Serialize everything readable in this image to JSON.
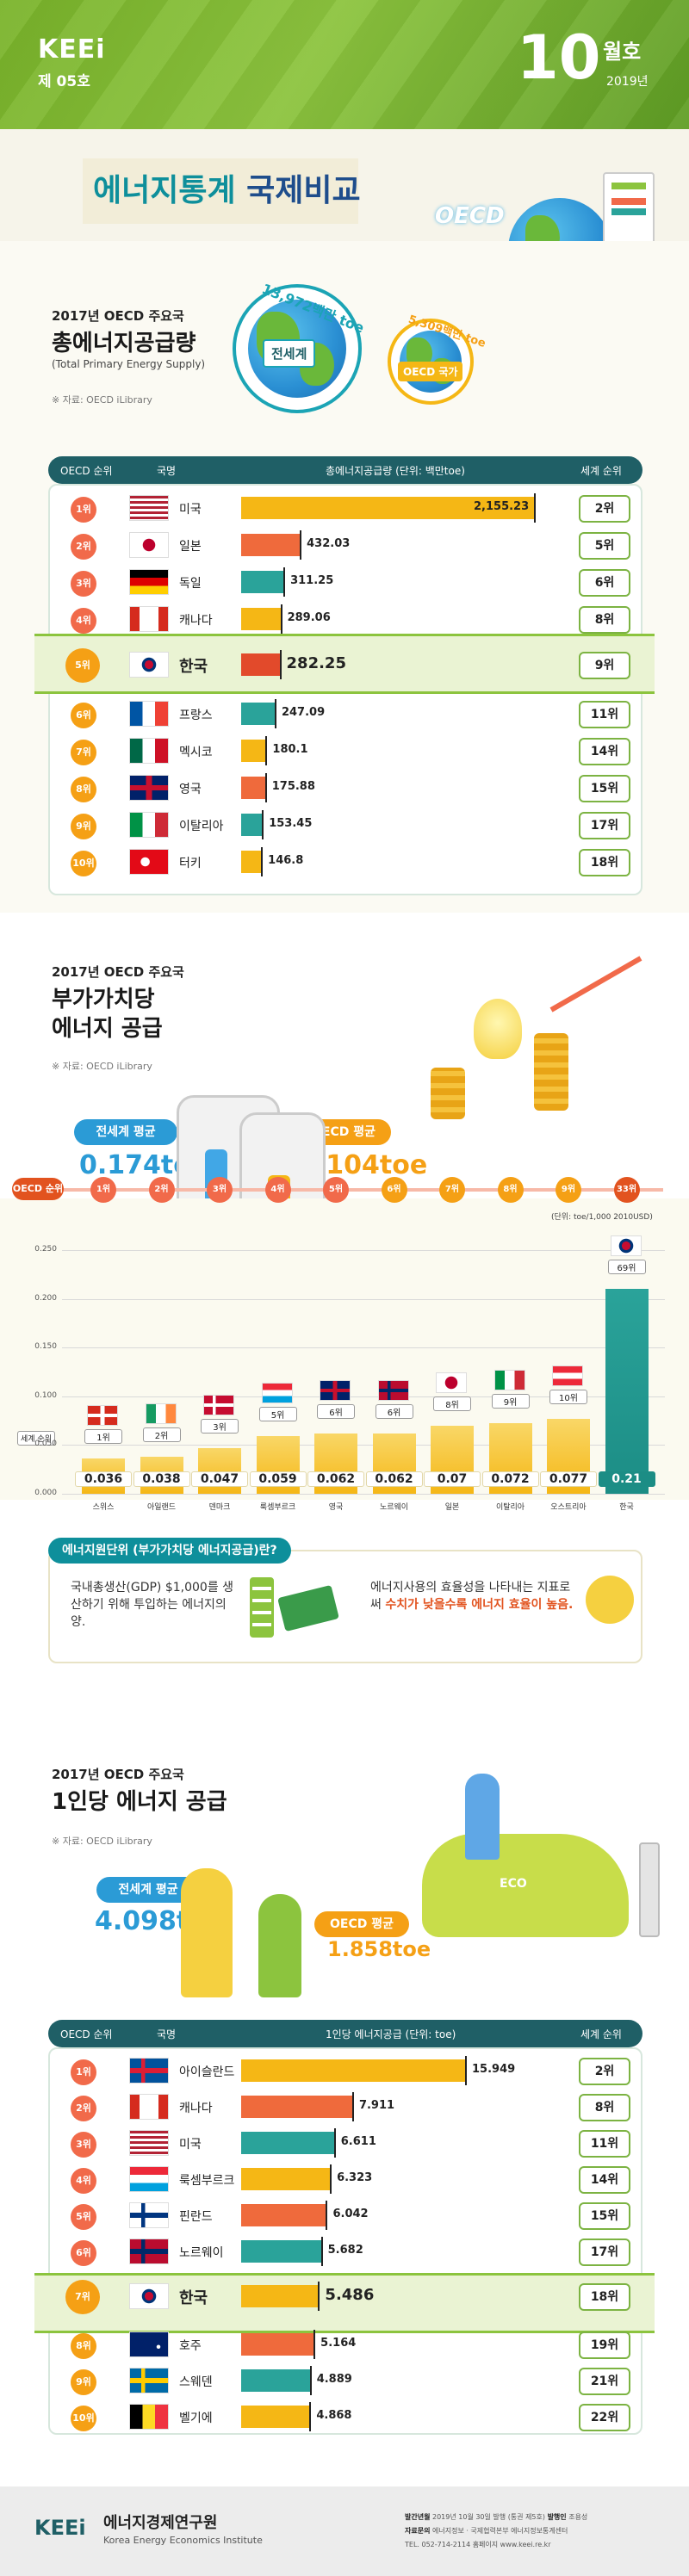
{
  "header": {
    "logo": "KEEi",
    "issue": "제 05호",
    "month_num": "10",
    "month_suffix": "월호",
    "year": "2019년"
  },
  "title": {
    "part1": "에너지통계",
    "part2": "국제비교",
    "oecd_badge": "OECD"
  },
  "sec1": {
    "label": "2017년 OECD 주요국",
    "title": "총에너지공급량",
    "subtitle_en": "(Total Primary Energy Supply)",
    "source": "※ 자료: OECD iLibrary",
    "world_value": "13,972백만 toe",
    "world_label": "전세계",
    "oecd_value": "5,309백만 toe",
    "oecd_label": "OECD 국가",
    "head_rank": "OECD 순위",
    "head_country": "국명",
    "head_unit": "총에너지공급량 (단위: 백만toe)",
    "head_world": "세계 순위"
  },
  "chart_data": [
    {
      "type": "bar",
      "title": "총에너지공급량",
      "unit": "단위: 백만toe",
      "categories": [
        "미국",
        "일본",
        "독일",
        "캐나다",
        "한국",
        "프랑스",
        "멕시코",
        "영국",
        "이탈리아",
        "터키"
      ],
      "oecd_rank": [
        "1위",
        "2위",
        "3위",
        "4위",
        "5위",
        "6위",
        "7위",
        "8위",
        "9위",
        "10위"
      ],
      "world_rank": [
        "2위",
        "5위",
        "6위",
        "8위",
        "9위",
        "11위",
        "14위",
        "15위",
        "17위",
        "18위"
      ],
      "values": [
        2155.23,
        432.03,
        311.25,
        289.06,
        282.25,
        247.09,
        180.1,
        175.88,
        153.45,
        146.8
      ],
      "value_labels": [
        "2,155.23",
        "432.03",
        "311.25",
        "289.06",
        "282.25",
        "247.09",
        "180.1",
        "175.88",
        "153.45",
        "146.8"
      ],
      "flags": [
        "us",
        "jp",
        "de",
        "ca",
        "kr",
        "fr",
        "mx",
        "gb",
        "it",
        "tr"
      ],
      "bar_colors": [
        "#f5b715",
        "#ef6a3c",
        "#2aa39a",
        "#f5b715",
        "#e24a2b",
        "#2aa39a",
        "#f5b715",
        "#ef6a3c",
        "#2aa39a",
        "#f5b715"
      ]
    },
    {
      "type": "bar",
      "title": "부가가치당 에너지 공급",
      "unit": "(단위: toe/1,000 2010USD)",
      "categories": [
        "스위스",
        "아일랜드",
        "덴마크",
        "룩셈부르크",
        "영국",
        "노르웨이",
        "일본",
        "이탈리아",
        "오스트리아",
        "한국"
      ],
      "oecd_rank": [
        "1위",
        "2위",
        "3위",
        "4위",
        "5위",
        "6위",
        "7위",
        "8위",
        "9위",
        "33위"
      ],
      "world_rank": [
        "1위",
        "2위",
        "3위",
        "5위",
        "6위",
        "6위",
        "8위",
        "9위",
        "10위",
        "69위"
      ],
      "values": [
        0.036,
        0.038,
        0.047,
        0.059,
        0.062,
        0.062,
        0.07,
        0.072,
        0.077,
        0.21
      ],
      "value_labels": [
        "0.036",
        "0.038",
        "0.047",
        "0.059",
        "0.062",
        "0.062",
        "0.07",
        "0.072",
        "0.077",
        "0.21"
      ],
      "flags": [
        "ch",
        "ie",
        "dk",
        "lu",
        "gb",
        "no",
        "jp",
        "it",
        "at",
        "kr"
      ],
      "y_ticks": [
        "0.000",
        "0.050",
        "0.100",
        "0.150",
        "0.200",
        "0.250"
      ],
      "ylim": [
        0,
        0.25
      ]
    },
    {
      "type": "bar",
      "title": "1인당 에너지 공급",
      "unit": "1인당 에너지공급 (단위: toe)",
      "categories": [
        "아이슬란드",
        "캐나다",
        "미국",
        "룩셈부르크",
        "핀란드",
        "노르웨이",
        "한국",
        "호주",
        "스웨덴",
        "벨기에"
      ],
      "oecd_rank": [
        "1위",
        "2위",
        "3위",
        "4위",
        "5위",
        "6위",
        "7위",
        "8위",
        "9위",
        "10위"
      ],
      "world_rank": [
        "2위",
        "8위",
        "11위",
        "14위",
        "15위",
        "17위",
        "18위",
        "19위",
        "21위",
        "22위"
      ],
      "values": [
        15.949,
        7.911,
        6.611,
        6.323,
        6.042,
        5.682,
        5.486,
        5.164,
        4.889,
        4.868
      ],
      "value_labels": [
        "15.949",
        "7.911",
        "6.611",
        "6.323",
        "6.042",
        "5.682",
        "5.486",
        "5.164",
        "4.889",
        "4.868"
      ],
      "flags": [
        "is",
        "ca",
        "us",
        "lu",
        "fi",
        "no",
        "kr",
        "au",
        "se",
        "be"
      ],
      "bar_colors": [
        "#f5b715",
        "#ef6a3c",
        "#2aa39a",
        "#f5b715",
        "#ef6a3c",
        "#2aa39a",
        "#f5b715",
        "#ef6a3c",
        "#2aa39a",
        "#f5b715"
      ]
    }
  ],
  "sec2": {
    "label": "2017년 OECD 주요국",
    "title1": "부가가치당",
    "title2": "에너지 공급",
    "source": "※ 자료: OECD iLibrary",
    "world_avg_label": "전세계 평균",
    "world_avg_value": "0.174toe",
    "oecd_avg_label": "OECD 평균",
    "oecd_avg_value": "0.104toe",
    "unit": "(단위: toe/1,000 2010USD)",
    "rank_label": "OECD 순위",
    "world_rank_label": "세계 순위",
    "info_head": "에너지원단위 (부가가치당 에너지공급)란?",
    "info_left": "국내총생산(GDP) $1,000를 생산하기 위해 투입하는 에너지의 양.",
    "info_right_1": "에너지사용의 효율성을 나타내는 지표로써",
    "info_right_hl": "수치가 낮을수록 에너지 효율이 높음."
  },
  "sec3": {
    "label": "2017년 OECD 주요국",
    "title": "1인당 에너지 공급",
    "source": "※ 자료: OECD iLibrary",
    "world_avg_label": "전세계 평균",
    "world_avg_value": "4.098toe",
    "oecd_avg_label": "OECD 평균",
    "oecd_avg_value": "1.858toe",
    "head_rank": "OECD 순위",
    "head_country": "국명",
    "head_unit": "1인당 에너지공급 (단위: toe)",
    "head_world": "세계 순위",
    "eco_sign": "ECO"
  },
  "footer": {
    "logo": "KEEi",
    "org": "에너지경제연구원",
    "org_en": "Korea Energy Economics Institute",
    "line1_a": "발간년월",
    "line1_b": "2019년 10월 30일 발행 (통권 제5호)",
    "line1_c": "발행인",
    "line1_d": "조용성",
    "line2_a": "자료문의",
    "line2_b": "에너지정보 · 국제협력본부 에너지정보통계센터",
    "line3": "TEL. 052-714-2114 홈페이지 www.keei.re.kr"
  }
}
